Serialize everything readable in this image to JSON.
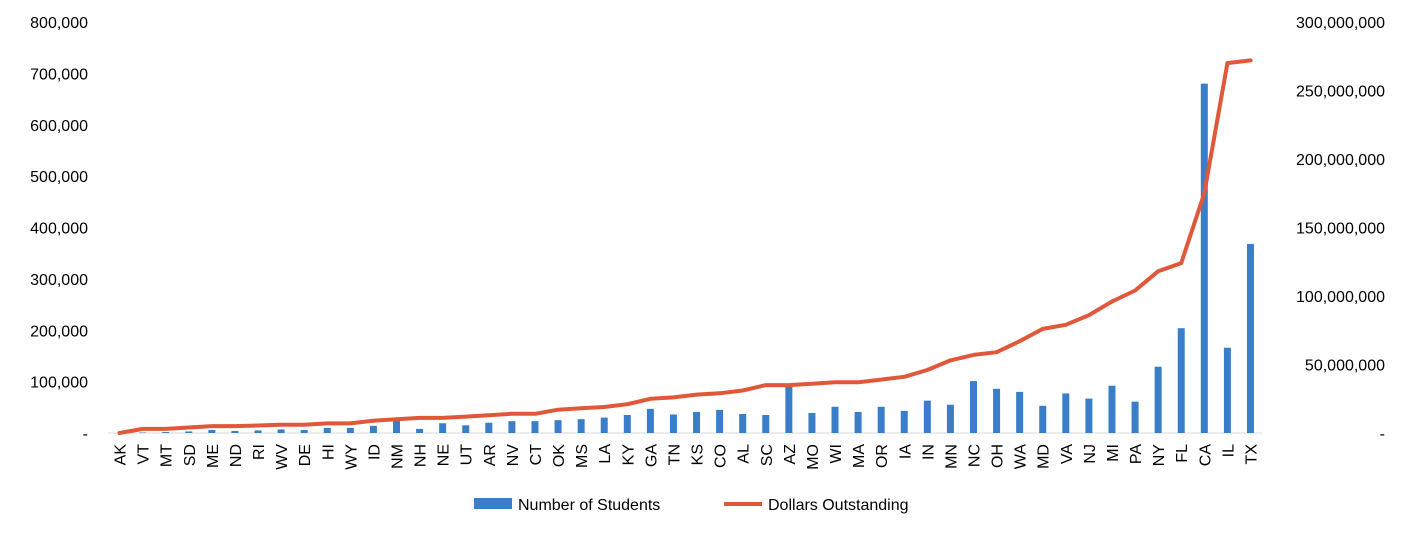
{
  "chart_data": {
    "type": "bar+line",
    "categories": [
      "AK",
      "VT",
      "MT",
      "SD",
      "ME",
      "ND",
      "RI",
      "WV",
      "DE",
      "HI",
      "WY",
      "ID",
      "NM",
      "NH",
      "NE",
      "UT",
      "AR",
      "NV",
      "CT",
      "OK",
      "MS",
      "LA",
      "KY",
      "GA",
      "TN",
      "KS",
      "CO",
      "AL",
      "SC",
      "AZ",
      "MO",
      "WI",
      "MA",
      "OR",
      "IA",
      "IN",
      "MN",
      "NC",
      "OH",
      "WA",
      "MD",
      "VA",
      "NJ",
      "MI",
      "PA",
      "NY",
      "FL",
      "CA",
      "IL",
      "TX"
    ],
    "series": [
      {
        "name": "Number of Students",
        "type": "bar",
        "axis": "left",
        "color": "#3A7DC9",
        "values": [
          0,
          1000,
          2000,
          3000,
          6000,
          4000,
          5000,
          7000,
          6000,
          10000,
          10000,
          14000,
          29000,
          8000,
          19000,
          15000,
          20000,
          23000,
          23000,
          25000,
          27000,
          30000,
          35000,
          47000,
          36000,
          41000,
          45000,
          37000,
          35000,
          96000,
          39000,
          51000,
          41000,
          51000,
          43000,
          63000,
          55000,
          101000,
          86000,
          80000,
          53000,
          77000,
          67000,
          92000,
          61000,
          129000,
          204000,
          680000,
          166000,
          368000
        ]
      },
      {
        "name": "Dollars Outstanding",
        "type": "line",
        "axis": "right",
        "color": "#E0573A",
        "values": [
          0,
          3000000,
          3000000,
          4000000,
          5000000,
          5000000,
          5500000,
          6000000,
          6000000,
          7000000,
          7000000,
          9000000,
          10000000,
          11000000,
          11000000,
          12000000,
          13000000,
          14000000,
          14000000,
          17000000,
          18000000,
          19000000,
          21000000,
          25000000,
          26000000,
          28000000,
          29000000,
          31000000,
          35000000,
          35000000,
          36000000,
          37000000,
          37000000,
          39000000,
          41000000,
          46000000,
          53000000,
          57000000,
          59000000,
          67000000,
          76000000,
          79000000,
          86000000,
          96000000,
          104000000,
          118000000,
          124000000,
          175000000,
          270000000,
          272000000
        ]
      }
    ],
    "y_left": {
      "min": 0,
      "max": 800000,
      "ticks": [
        0,
        100000,
        200000,
        300000,
        400000,
        500000,
        600000,
        700000,
        800000
      ],
      "tick_labels": [
        "-",
        "100,000",
        "200,000",
        "300,000",
        "400,000",
        "500,000",
        "600,000",
        "700,000",
        "800,000"
      ]
    },
    "y_right": {
      "min": 0,
      "max": 300000000,
      "ticks": [
        0,
        50000000,
        100000000,
        150000000,
        200000000,
        250000000,
        300000000
      ],
      "tick_labels": [
        "-",
        "50,000,000",
        "100,000,000",
        "150,000,000",
        "200,000,000",
        "250,000,000",
        "300,000,000"
      ]
    },
    "grid": false,
    "legend_position": "bottom",
    "title": "",
    "xlabel": "",
    "ylabel": ""
  }
}
